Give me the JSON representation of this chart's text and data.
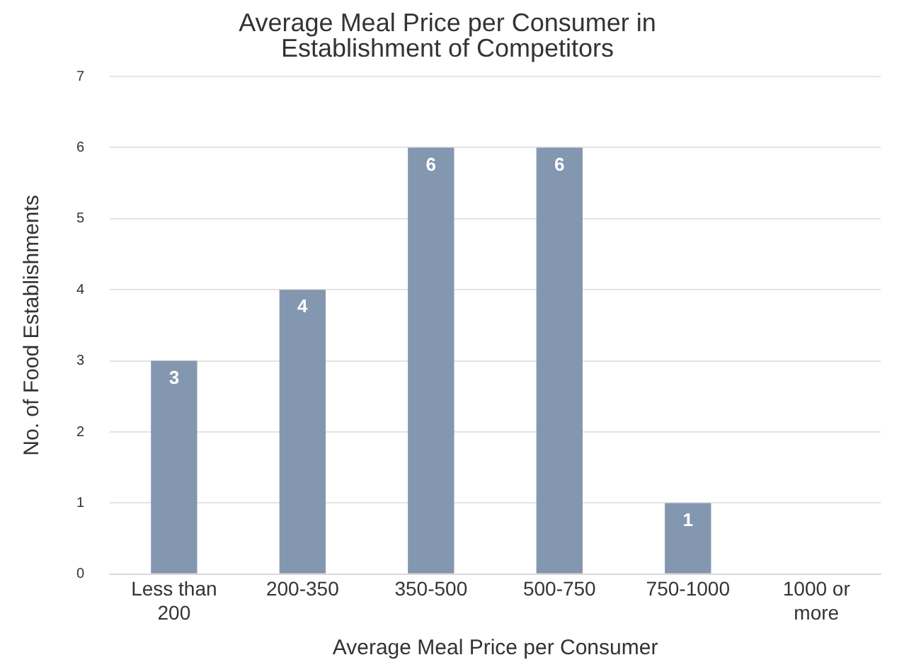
{
  "chart_data": {
    "type": "bar",
    "title": "Average Meal Price per Consumer in Establishment of Competitors",
    "xlabel": "Average Meal Price per Consumer",
    "ylabel": "No. of Food Establishments",
    "categories": [
      "Less than 200",
      "200-350",
      "350-500",
      "500-750",
      "750-1000",
      "1000 or more"
    ],
    "values": [
      3,
      4,
      6,
      6,
      1,
      0
    ],
    "value_labels": [
      "3",
      "4",
      "6",
      "6",
      "1",
      null
    ],
    "color": "#8497b0",
    "ylim": [
      0,
      7
    ],
    "yticks": [
      0,
      1,
      2,
      3,
      4,
      5,
      6,
      7
    ],
    "grid": "y",
    "legend": false
  }
}
